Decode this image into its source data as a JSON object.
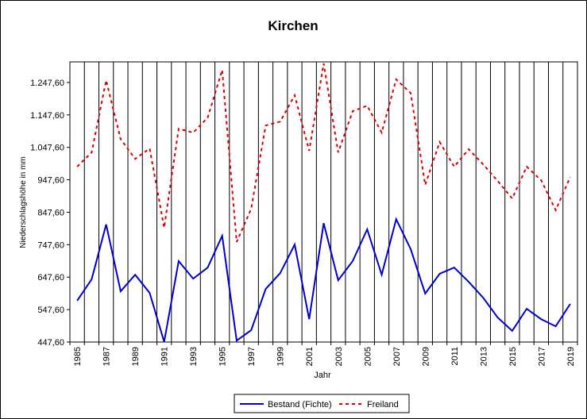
{
  "chart_data": {
    "type": "line",
    "title": "Kirchen",
    "x_label": "Jahr",
    "y_label": "Niederschlagshöhe in mm",
    "categories": [
      "1985",
      null,
      "1987",
      null,
      "1989",
      null,
      "1991",
      null,
      "1993",
      null,
      "1995",
      null,
      "1997",
      null,
      "1999",
      null,
      "2001",
      null,
      "2003",
      null,
      "2005",
      null,
      "2007",
      null,
      "2009",
      null,
      "2011",
      null,
      "2013",
      null,
      "2015",
      null,
      "2017",
      null,
      "2019"
    ],
    "series": [
      {
        "name": "Bestand (Fichte)",
        "color": "#0000cc",
        "dash": false,
        "values": [
          575,
          641,
          810,
          604,
          655,
          599,
          448,
          697,
          643,
          677,
          775,
          452,
          484,
          611,
          660,
          748,
          518,
          814,
          638,
          697,
          795,
          655,
          826,
          734,
          597,
          658,
          677,
          633,
          584,
          523,
          482,
          550,
          518,
          496,
          565
        ]
      },
      {
        "name": "Freiland",
        "color": "#dd0000",
        "dash": true,
        "values": [
          988,
          1032,
          1254,
          1073,
          1012,
          1044,
          800,
          1105,
          1093,
          1139,
          1286,
          756,
          858,
          1115,
          1127,
          1208,
          1037,
          1306,
          1032,
          1159,
          1176,
          1093,
          1257,
          1215,
          932,
          1064,
          988,
          1042,
          995,
          944,
          890,
          988,
          946,
          854,
          956
        ]
      }
    ],
    "ylim": [
      447.6,
      1311
    ],
    "yticks": [
      {
        "value": 447.6,
        "label": "447,60"
      },
      {
        "value": 547.6,
        "label": "547,60"
      },
      {
        "value": 647.6,
        "label": "647,60"
      },
      {
        "value": 747.6,
        "label": "747,60"
      },
      {
        "value": 847.6,
        "label": "847,60"
      },
      {
        "value": 947.6,
        "label": "947,60"
      },
      {
        "value": 1047.6,
        "label": "1.047,60"
      },
      {
        "value": 1147.6,
        "label": "1.147,60"
      },
      {
        "value": 1247.6,
        "label": "1.247,60"
      }
    ],
    "legend": "bottom"
  }
}
